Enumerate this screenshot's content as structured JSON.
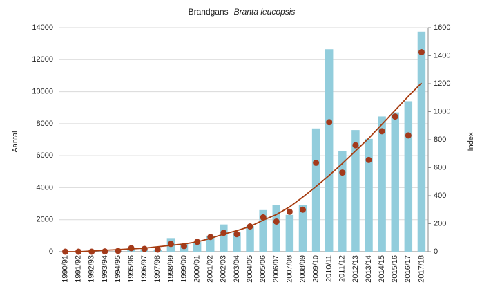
{
  "chart_data": {
    "type": "bar",
    "title": "Brandgans",
    "title_italic": "Branta leucopsis",
    "ylabel": "Aantal",
    "y2label": "Index",
    "categories": [
      "1990/91",
      "1991/92",
      "1992/93",
      "1993/94",
      "1994/95",
      "1995/96",
      "1996/97",
      "1997/98",
      "1998/99",
      "1999/00",
      "2000/01",
      "2001/02",
      "2002/03",
      "2003/04",
      "2004/05",
      "2005/06",
      "2006/07",
      "2007/08",
      "2008/09",
      "2009/10",
      "2010/11",
      "2011/12",
      "2012/13",
      "2013/14",
      "2014/15",
      "2015/16",
      "2016/17",
      "2017/18"
    ],
    "series": [
      {
        "type": "bar",
        "color": "#92cddc",
        "axis": "y",
        "values": [
          0,
          0,
          0,
          0,
          50,
          250,
          150,
          100,
          850,
          500,
          600,
          1000,
          1700,
          1200,
          1600,
          2600,
          2900,
          2300,
          2900,
          7700,
          12650,
          6300,
          7600,
          7050,
          8450,
          8700,
          9400,
          13750
        ]
      },
      {
        "type": "scatter",
        "color": "#a33a1c",
        "axis": "y2",
        "values": [
          0,
          0,
          0,
          2,
          5,
          25,
          20,
          15,
          55,
          40,
          70,
          105,
          135,
          125,
          180,
          245,
          215,
          285,
          300,
          635,
          925,
          565,
          760,
          655,
          860,
          965,
          830,
          1425
        ]
      },
      {
        "type": "line",
        "color": "#a63c10",
        "axis": "y2",
        "values": [
          0,
          0,
          5,
          10,
          15,
          20,
          25,
          35,
          45,
          55,
          70,
          95,
          125,
          150,
          180,
          225,
          265,
          320,
          390,
          465,
          545,
          630,
          720,
          810,
          910,
          1010,
          1110,
          1205
        ]
      }
    ],
    "ylim": [
      0,
      14000
    ],
    "yticks": [
      0,
      2000,
      4000,
      6000,
      8000,
      10000,
      12000,
      14000
    ],
    "y2lim": [
      0,
      1600
    ],
    "y2ticks": [
      0,
      200,
      400,
      600,
      800,
      1000,
      1200,
      1400,
      1600
    ],
    "grid": true
  }
}
